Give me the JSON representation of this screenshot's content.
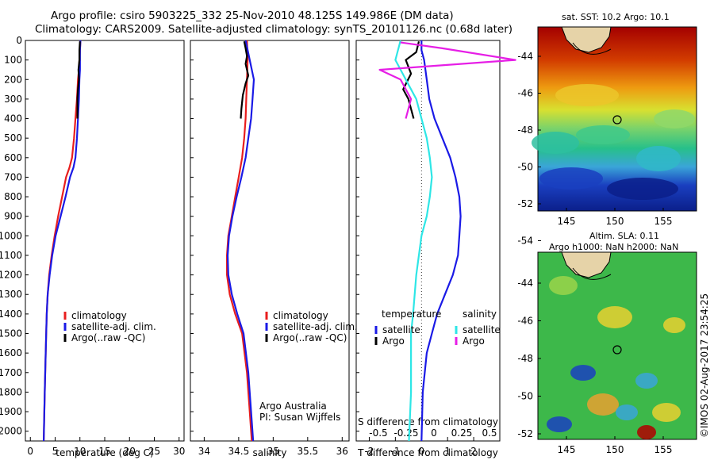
{
  "header": {
    "title_line1": "Argo profile: csiro 5903225_332 25-Nov-2010 48.125S 149.986E (DM data)",
    "title_line2": "Climatology: CARS2009. Satellite-adjusted climatology: synTS_20101126.nc (0.68d later)"
  },
  "side": {
    "sst_title": "sat. SST: 10.2 Argo: 10.1",
    "sla_title1": "Altim. SLA: 0.11",
    "sla_title2": "Argo h1000: NaN h2000: NaN",
    "vertical_stamp": "©IMOS 02-Aug-2017 23:54:25"
  },
  "colors": {
    "climatology": "#e81e1e",
    "satellite": "#1a1ae6",
    "argo": "#000000",
    "sal_satellite": "#2ee6e6",
    "sal_argo": "#e61ee6"
  },
  "chart_data": [
    {
      "type": "line",
      "xlabel": "temperature (deg C)",
      "ylabel": "",
      "xlim": [
        -1,
        31
      ],
      "ylim": [
        0,
        2050
      ],
      "y_reversed": true,
      "xticks": [
        0,
        5,
        10,
        15,
        20,
        25,
        30
      ],
      "yticks": [
        0,
        100,
        200,
        300,
        400,
        500,
        600,
        700,
        800,
        900,
        1000,
        1100,
        1200,
        1300,
        1400,
        1500,
        1600,
        1700,
        1800,
        1900,
        2000
      ],
      "legend": [
        "climatology",
        "satellite-adj. clim.",
        "Argo(..raw -QC)"
      ],
      "series": [
        {
          "name": "climatology",
          "x": [
            10.1,
            10.0,
            9.9,
            9.8,
            9.6,
            9.4,
            9.1,
            8.8,
            8.4,
            7.9,
            7.2,
            6.4,
            5.6,
            4.9,
            4.3,
            3.8,
            3.5,
            3.3,
            3.1,
            2.9,
            2.7
          ],
          "y": [
            0,
            50,
            100,
            150,
            200,
            300,
            400,
            500,
            600,
            650,
            700,
            800,
            900,
            1000,
            1100,
            1200,
            1300,
            1400,
            1600,
            1800,
            2050
          ]
        },
        {
          "name": "satellite-adj. clim.",
          "x": [
            10.1,
            10.0,
            10.0,
            10.0,
            9.9,
            9.8,
            9.6,
            9.4,
            9.1,
            8.7,
            8.0,
            7.1,
            6.1,
            5.1,
            4.4,
            3.9,
            3.5,
            3.3,
            3.1,
            2.9,
            2.7
          ],
          "y": [
            0,
            50,
            100,
            150,
            200,
            300,
            400,
            500,
            600,
            650,
            700,
            800,
            900,
            1000,
            1100,
            1200,
            1300,
            1400,
            1600,
            1800,
            2050
          ]
        },
        {
          "name": "Argo(..raw -QC)",
          "x": [
            10.0,
            9.9,
            9.9,
            9.7,
            9.8,
            9.6,
            9.5,
            9.5
          ],
          "y": [
            5,
            50,
            100,
            150,
            200,
            250,
            300,
            400
          ]
        }
      ]
    },
    {
      "type": "line",
      "xlabel": "salinity",
      "ylabel": "",
      "xlim": [
        33.8,
        36.1
      ],
      "ylim": [
        0,
        2050
      ],
      "y_reversed": true,
      "xticks": [
        34,
        34.5,
        35,
        35.5,
        36
      ],
      "legend": [
        "climatology",
        "satellite-adj. clim.",
        "Argo(..raw -QC)"
      ],
      "annotation": [
        "Argo Australia",
        "PI: Susan Wijffels"
      ],
      "series": [
        {
          "name": "climatology",
          "x": [
            34.62,
            34.63,
            34.62,
            34.61,
            34.6,
            34.58,
            34.55,
            34.5,
            34.45,
            34.4,
            34.35,
            34.33,
            34.33,
            34.37,
            34.45,
            34.55,
            34.62,
            34.66,
            34.69
          ],
          "y": [
            0,
            100,
            200,
            300,
            400,
            500,
            600,
            700,
            800,
            900,
            1000,
            1100,
            1200,
            1300,
            1400,
            1500,
            1700,
            1900,
            2050
          ]
        },
        {
          "name": "satellite-adj. clim.",
          "x": [
            34.6,
            34.66,
            34.72,
            34.7,
            34.68,
            34.64,
            34.6,
            34.54,
            34.47,
            34.41,
            34.36,
            34.34,
            34.35,
            34.4,
            34.48,
            34.57,
            34.64,
            34.68,
            34.71
          ],
          "y": [
            0,
            100,
            200,
            300,
            400,
            500,
            600,
            700,
            800,
            900,
            1000,
            1100,
            1200,
            1300,
            1400,
            1500,
            1700,
            1900,
            2050
          ]
        },
        {
          "name": "Argo(..raw -QC)",
          "x": [
            34.58,
            34.6,
            34.62,
            34.6,
            34.64,
            34.6,
            34.56,
            34.54,
            34.53
          ],
          "y": [
            5,
            40,
            80,
            120,
            180,
            220,
            280,
            350,
            400
          ]
        }
      ]
    },
    {
      "type": "line",
      "xlabel": "T difference from climatology",
      "top_label": "S difference from climatology",
      "xlim": [
        -2.5,
        3
      ],
      "ylim": [
        0,
        2050
      ],
      "y_reversed": true,
      "xticks": [
        -2,
        -1,
        0,
        1,
        2
      ],
      "top_ticks": [
        "-0.5",
        "-0.25",
        "0",
        "0.25",
        "0.5"
      ],
      "legend_temperature": [
        "temperature",
        "satellite",
        "Argo"
      ],
      "legend_salinity": [
        "salinity",
        "satellite",
        "Argo"
      ],
      "series": [
        {
          "name": "temperature satellite",
          "x": [
            0.0,
            0.0,
            0.1,
            0.2,
            0.3,
            0.5,
            0.8,
            1.1,
            1.3,
            1.45,
            1.5,
            1.45,
            1.4,
            1.2,
            0.9,
            0.6,
            0.4,
            0.2,
            0.05,
            0.0
          ],
          "y": [
            0,
            50,
            100,
            200,
            300,
            400,
            500,
            600,
            700,
            800,
            900,
            1000,
            1100,
            1200,
            1300,
            1400,
            1500,
            1600,
            1800,
            2050
          ]
        },
        {
          "name": "temperature Argo",
          "x": [
            -0.1,
            -0.2,
            -0.6,
            -0.4,
            -0.7,
            -0.5,
            -0.3
          ],
          "y": [
            5,
            60,
            100,
            170,
            250,
            300,
            400
          ]
        },
        {
          "name": "salinity satellite",
          "x": [
            -0.2,
            -0.25,
            -0.15,
            -0.05,
            0.0,
            0.05,
            0.08,
            0.1,
            0.08,
            0.05,
            0.0,
            -0.05,
            -0.08,
            -0.1,
            -0.1,
            -0.1,
            -0.1,
            -0.12
          ],
          "y": [
            0,
            100,
            200,
            300,
            400,
            500,
            600,
            700,
            800,
            900,
            1000,
            1200,
            1400,
            1500,
            1600,
            1700,
            1800,
            2050
          ]
        },
        {
          "name": "salinity Argo",
          "x": [
            -0.2,
            0.2,
            0.9,
            -0.4,
            -0.2,
            -0.1,
            -0.15
          ],
          "y": [
            10,
            40,
            100,
            150,
            200,
            300,
            400
          ]
        }
      ]
    }
  ]
}
